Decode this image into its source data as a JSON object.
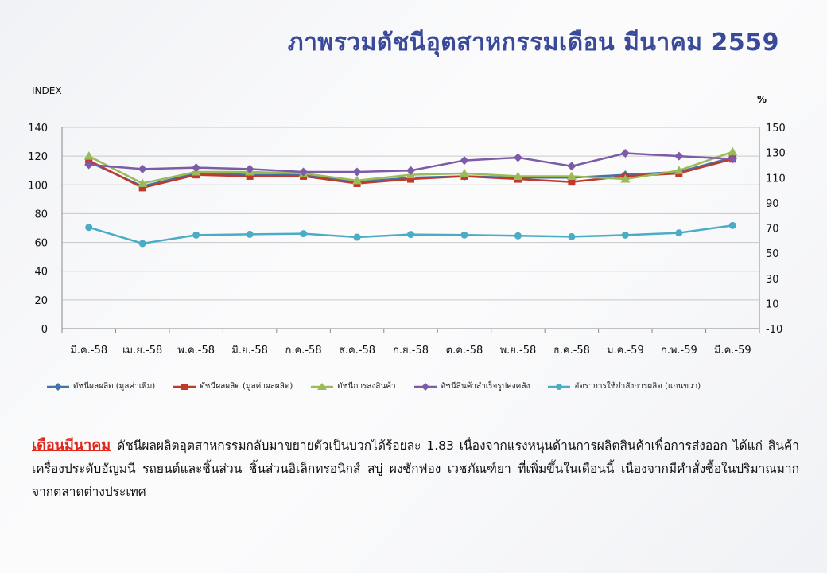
{
  "title": "ภาพรวมดัชนีอุตสาหกรรมเดือน  มีนาคม  2559",
  "chart_data": {
    "type": "line",
    "ylabel_left": "INDEX",
    "ylabel_right": "%",
    "ylim_left": [
      0,
      140
    ],
    "yticks_left": [
      0,
      20,
      40,
      60,
      80,
      100,
      120,
      140
    ],
    "ylim_right": [
      -10,
      150
    ],
    "yticks_right": [
      -10,
      10,
      30,
      50,
      70,
      90,
      110,
      130,
      150
    ],
    "grid": true,
    "legend_position": "bottom",
    "categories": [
      "มี.ค.-58",
      "เม.ย.-58",
      "พ.ค.-58",
      "มิ.ย.-58",
      "ก.ค.-58",
      "ส.ค.-58",
      "ก.ย.-58",
      "ต.ค.-58",
      "พ.ย.-58",
      "ธ.ค.-58",
      "ม.ค.-59",
      "ก.พ.-59",
      "มี.ค.-59"
    ],
    "series": [
      {
        "name": "ดัชนีผลผลิต (มูลค่าเพิ่ม)",
        "axis": "left",
        "color": "#4572a7",
        "marker": "diamond",
        "values": [
          116,
          99,
          108,
          107,
          107,
          102,
          105,
          106,
          105,
          105,
          107,
          109,
          119
        ]
      },
      {
        "name": "ดัชนีผลผลิต (มูลค่าผลผลิต)",
        "axis": "left",
        "color": "#c0392b",
        "marker": "square",
        "values": [
          117,
          98,
          107,
          106,
          106,
          101,
          104,
          106,
          104,
          102,
          106,
          108,
          118
        ]
      },
      {
        "name": "ดัชนีการส่งสินค้า",
        "axis": "left",
        "color": "#9bbb59",
        "marker": "triangle",
        "values": [
          120,
          101,
          109,
          109,
          108,
          103,
          107,
          108,
          106,
          106,
          104,
          110,
          123
        ]
      },
      {
        "name": "ดัชนีสินค้าสำเร็จรูปคงคลัง",
        "axis": "left",
        "color": "#7d5ba6",
        "marker": "diamond",
        "values": [
          114,
          111,
          112,
          111,
          109,
          109,
          110,
          117,
          119,
          113,
          122,
          120,
          118
        ]
      },
      {
        "name": "อัตราการใช้กำลังการผลิต  (แกนขวา)",
        "axis": "right",
        "color": "#4bacc6",
        "marker": "circle",
        "values": [
          70.5,
          57.7,
          64.4,
          65.0,
          65.5,
          62.7,
          64.9,
          64.5,
          63.8,
          63.1,
          64.4,
          66.1,
          72.0
        ]
      }
    ]
  },
  "description": {
    "heading": "เดือนมีนาคม",
    "body": "ดัชนีผลผลิตอุตสาหกรรมกลับมาขยายตัวเป็นบวกได้ร้อยละ  1.83  เนื่องจากแรงหนุนด้านการผลิตสินค้าเพื่อการส่งออก  ได้แก่  สินค้าเครื่องประดับอัญมนี  รถยนต์และชิ้นส่วน  ชิ้นส่วนอิเล็กทรอนิกส์  สบู่  ผงซักฟอง  เวชภัณฑ์ยา  ที่เพิ่มขึ้นในเดือนนี้  เนื่องจากมีคำสั่งซื้อในปริมาณมากจากตลาดต่างประเทศ"
  }
}
